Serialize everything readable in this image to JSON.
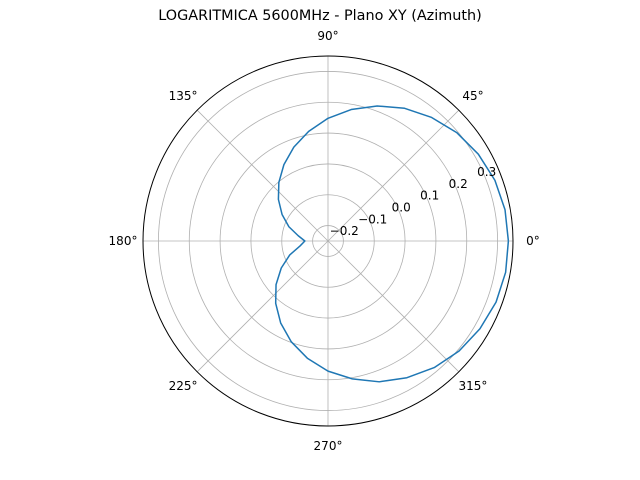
{
  "chart_data": {
    "type": "line",
    "projection": "polar",
    "title": "LOGARITMICA 5600MHz - Plano XY (Azimuth)",
    "angular_ticks": [
      "0°",
      "45°",
      "90°",
      "135°",
      "180°",
      "225°",
      "270°",
      "315°"
    ],
    "radial_ticks": [
      {
        "value": -0.2,
        "label": "−0.2"
      },
      {
        "value": -0.1,
        "label": "−0.1"
      },
      {
        "value": 0.0,
        "label": "0.0"
      },
      {
        "value": 0.1,
        "label": "0.1"
      },
      {
        "value": 0.2,
        "label": "0.2"
      },
      {
        "value": 0.3,
        "label": "0.3"
      }
    ],
    "rlim": [
      -0.25,
      0.35
    ],
    "grid": true,
    "series": [
      {
        "color": "#1f77b4",
        "theta_deg": [
          0,
          10,
          20,
          30,
          40,
          50,
          60,
          70,
          80,
          90,
          100,
          110,
          120,
          130,
          140,
          150,
          160,
          170,
          180,
          190,
          200,
          210,
          220,
          230,
          240,
          250,
          260,
          270,
          280,
          290,
          300,
          310,
          320,
          330,
          340,
          350,
          360
        ],
        "r": [
          0.335,
          0.333,
          0.326,
          0.313,
          0.296,
          0.273,
          0.247,
          0.216,
          0.183,
          0.148,
          0.111,
          0.074,
          0.036,
          -0.002,
          -0.04,
          -0.078,
          -0.115,
          -0.152,
          -0.175,
          -0.158,
          -0.118,
          -0.075,
          -0.03,
          0.014,
          0.057,
          0.098,
          0.136,
          0.172,
          0.204,
          0.236,
          0.262,
          0.286,
          0.305,
          0.319,
          0.33,
          0.335,
          0.335
        ]
      }
    ]
  }
}
